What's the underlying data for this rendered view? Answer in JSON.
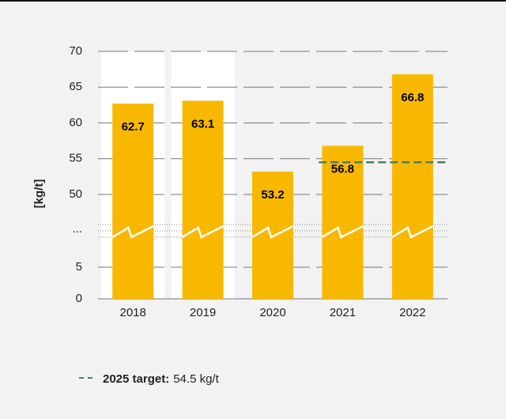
{
  "chart_data": {
    "type": "bar",
    "y_label": "[kg/t]",
    "categories": [
      "2018",
      "2019",
      "2020",
      "2021",
      "2022"
    ],
    "values": [
      62.7,
      63.1,
      53.2,
      56.8,
      66.8
    ],
    "color": "#f9b800",
    "highlighted": [
      true,
      true,
      false,
      false,
      false
    ],
    "ylim": [
      0,
      70
    ],
    "yticks": [
      0,
      5,
      50,
      55,
      60,
      65,
      70
    ],
    "axis_break": [
      5,
      50
    ],
    "axis_break_label": "...",
    "grid": true,
    "target": {
      "label": "2025 target:",
      "value": 54.5,
      "value_label": "54.5 kg/t",
      "color": "#4d7f5f"
    }
  }
}
